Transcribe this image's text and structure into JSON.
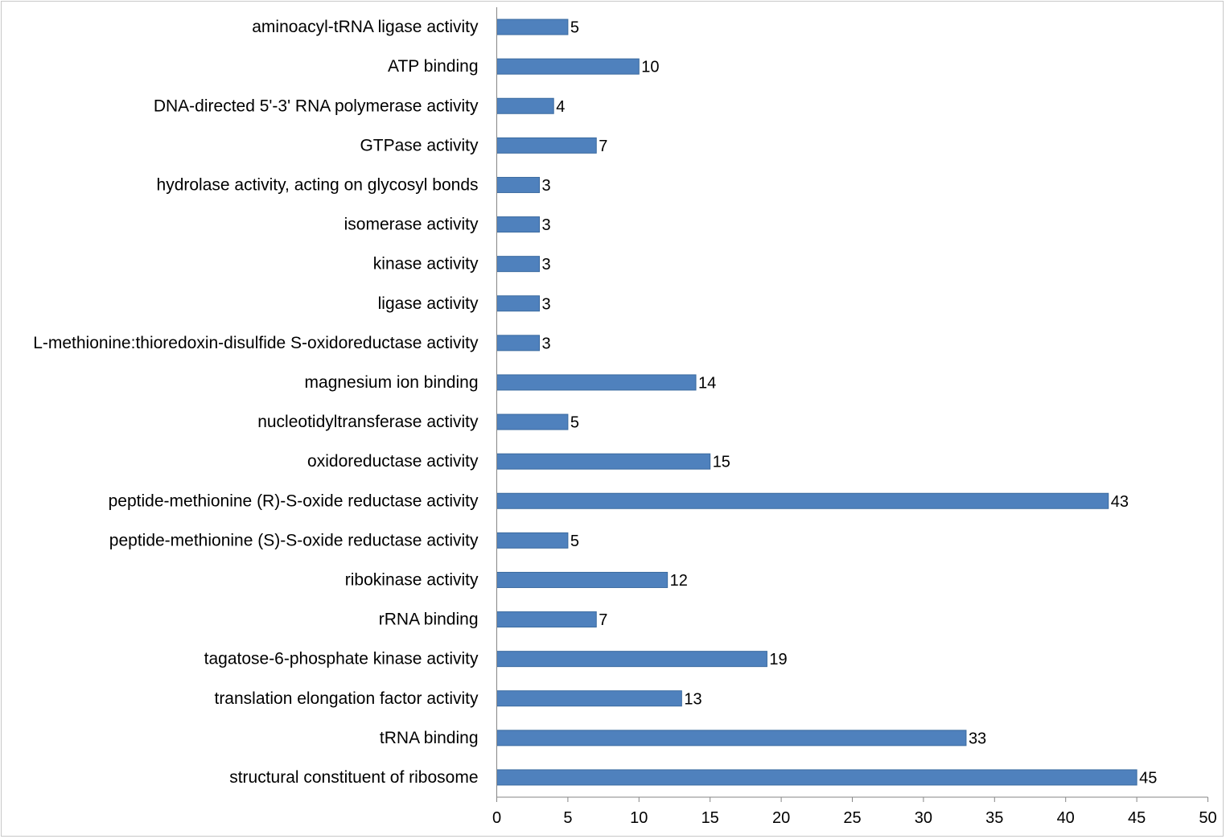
{
  "chart_data": {
    "type": "bar",
    "orientation": "horizontal",
    "title": "",
    "xlabel": "",
    "ylabel": "",
    "categories": [
      "aminoacyl-tRNA ligase activity",
      "ATP binding",
      "DNA-directed 5'-3' RNA polymerase activity",
      "GTPase activity",
      "hydrolase activity, acting on glycosyl bonds",
      "isomerase activity",
      "kinase activity",
      "ligase activity",
      "L-methionine:thioredoxin-disulfide S-oxidoreductase activity",
      "magnesium ion binding",
      "nucleotidyltransferase activity",
      "oxidoreductase activity",
      "peptide-methionine (R)-S-oxide reductase activity",
      "peptide-methionine (S)-S-oxide reductase activity",
      "ribokinase activity",
      "rRNA binding",
      "tagatose-6-phosphate kinase activity",
      "translation elongation factor activity",
      "tRNA binding",
      "structural constituent of ribosome"
    ],
    "values": [
      5,
      10,
      4,
      7,
      3,
      3,
      3,
      3,
      3,
      14,
      5,
      15,
      43,
      5,
      12,
      7,
      19,
      13,
      33,
      45
    ],
    "xlim": [
      0,
      50
    ],
    "xticks": [
      0,
      5,
      10,
      15,
      20,
      25,
      30,
      35,
      40,
      45,
      50
    ],
    "grid": false,
    "bar_color": "#4f81bd",
    "bar_edge_color": "#3a6a9f",
    "axis_color": "#868686"
  }
}
